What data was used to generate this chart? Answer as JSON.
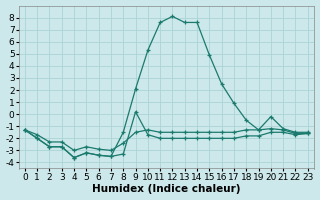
{
  "xlabel": "Humidex (Indice chaleur)",
  "background_color": "#cce8ea",
  "grid_color": "#aad4d6",
  "line_color": "#1a7a6e",
  "x": [
    0,
    1,
    2,
    3,
    4,
    5,
    6,
    7,
    8,
    9,
    10,
    11,
    12,
    13,
    14,
    15,
    16,
    17,
    18,
    19,
    20,
    21,
    22,
    23
  ],
  "line1": [
    -1.3,
    -2.0,
    -2.7,
    -2.7,
    -3.6,
    -3.2,
    -3.4,
    -3.5,
    -3.3,
    0.2,
    -1.7,
    -2.0,
    -2.0,
    -2.0,
    -2.0,
    -2.0,
    -2.0,
    -2.0,
    -1.8,
    -1.8,
    -1.5,
    -1.5,
    -1.7,
    -1.6
  ],
  "line2": [
    -1.3,
    -2.0,
    -2.7,
    -2.7,
    -3.6,
    -3.2,
    -3.4,
    -3.5,
    -1.5,
    2.1,
    5.3,
    7.6,
    8.1,
    7.6,
    7.6,
    4.9,
    2.5,
    0.9,
    -0.5,
    -1.3,
    -0.2,
    -1.2,
    -1.5,
    -1.5
  ],
  "line3": [
    -1.3,
    -1.7,
    -2.3,
    -2.3,
    -3.0,
    -2.7,
    -2.9,
    -3.0,
    -2.4,
    -1.5,
    -1.3,
    -1.5,
    -1.5,
    -1.5,
    -1.5,
    -1.5,
    -1.5,
    -1.5,
    -1.3,
    -1.3,
    -1.2,
    -1.3,
    -1.6,
    -1.6
  ],
  "ylim": [
    -4.5,
    9.0
  ],
  "xlim": [
    -0.5,
    23.5
  ],
  "yticks": [
    -4,
    -3,
    -2,
    -1,
    0,
    1,
    2,
    3,
    4,
    5,
    6,
    7,
    8
  ],
  "xticks": [
    0,
    1,
    2,
    3,
    4,
    5,
    6,
    7,
    8,
    9,
    10,
    11,
    12,
    13,
    14,
    15,
    16,
    17,
    18,
    19,
    20,
    21,
    22,
    23
  ],
  "xtick_labels": [
    "0",
    "1",
    "2",
    "3",
    "4",
    "5",
    "6",
    "7",
    "8",
    "9",
    "10",
    "11",
    "12",
    "13",
    "14",
    "15",
    "16",
    "17",
    "18",
    "19",
    "20",
    "21",
    "22",
    "23"
  ],
  "fontsize_ticks": 6.5,
  "fontsize_label": 7.5
}
